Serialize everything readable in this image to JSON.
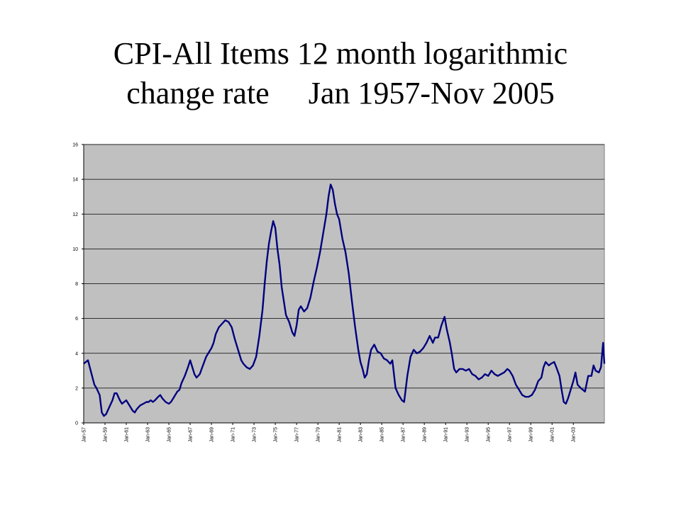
{
  "title": {
    "line1": "CPI-All Items 12 month logarithmic",
    "line2": "change rate     Jan 1957-Nov 2005"
  },
  "colors": {
    "plot_background": "#c0c0c0",
    "series_line": "#00007f",
    "gridline": "#000000"
  },
  "chart_data": {
    "type": "line",
    "title": "CPI-All Items 12 month logarithmic change rate     Jan 1957-Nov 2005",
    "xlabel": "",
    "ylabel": "",
    "ylim": [
      0,
      16
    ],
    "yticks": [
      0,
      2,
      4,
      6,
      8,
      10,
      12,
      14,
      16
    ],
    "xlim": [
      1957.0,
      2005.917
    ],
    "xtick_labels": [
      {
        "x": 1957,
        "label": "Jan-57"
      },
      {
        "x": 1959,
        "label": "Jan-59"
      },
      {
        "x": 1961,
        "label": "Jan-61"
      },
      {
        "x": 1963,
        "label": "Jan-63"
      },
      {
        "x": 1965,
        "label": "Jan-65"
      },
      {
        "x": 1967,
        "label": "Jan-67"
      },
      {
        "x": 1969,
        "label": "Jan-69"
      },
      {
        "x": 1971,
        "label": "Jan-71"
      },
      {
        "x": 1973,
        "label": "Jan-73"
      },
      {
        "x": 1975,
        "label": "Jan-75"
      },
      {
        "x": 1977,
        "label": "Jan-77"
      },
      {
        "x": 1979,
        "label": "Jan-79"
      },
      {
        "x": 1981,
        "label": "Jan-81"
      },
      {
        "x": 1983,
        "label": "Jan-83"
      },
      {
        "x": 1985,
        "label": "Jan-85"
      },
      {
        "x": 1987,
        "label": "Jan-87"
      },
      {
        "x": 1989,
        "label": "Jan-89"
      },
      {
        "x": 1991,
        "label": "Jan-91"
      },
      {
        "x": 1993,
        "label": "Jan-93"
      },
      {
        "x": 1995,
        "label": "Jan-95"
      },
      {
        "x": 1997,
        "label": "Jan-97"
      },
      {
        "x": 1999,
        "label": "Jan-99"
      },
      {
        "x": 2001,
        "label": "Jan-01"
      },
      {
        "x": 2003,
        "label": "Jan-03"
      }
    ],
    "grid": "horizontal",
    "legend": "none",
    "series": [
      {
        "points": [
          [
            1957.0,
            3.4
          ],
          [
            1957.2,
            3.5
          ],
          [
            1957.4,
            3.6
          ],
          [
            1957.7,
            2.9
          ],
          [
            1958.0,
            2.2
          ],
          [
            1958.2,
            2.0
          ],
          [
            1958.5,
            1.6
          ],
          [
            1958.7,
            0.6
          ],
          [
            1958.9,
            0.4
          ],
          [
            1959.1,
            0.5
          ],
          [
            1959.4,
            0.9
          ],
          [
            1959.7,
            1.3
          ],
          [
            1959.9,
            1.7
          ],
          [
            1960.1,
            1.7
          ],
          [
            1960.4,
            1.3
          ],
          [
            1960.6,
            1.1
          ],
          [
            1960.8,
            1.2
          ],
          [
            1961.0,
            1.3
          ],
          [
            1961.2,
            1.1
          ],
          [
            1961.4,
            0.9
          ],
          [
            1961.6,
            0.7
          ],
          [
            1961.8,
            0.6
          ],
          [
            1962.0,
            0.8
          ],
          [
            1962.3,
            1.0
          ],
          [
            1962.6,
            1.1
          ],
          [
            1962.9,
            1.2
          ],
          [
            1963.1,
            1.2
          ],
          [
            1963.3,
            1.3
          ],
          [
            1963.5,
            1.2
          ],
          [
            1963.7,
            1.3
          ],
          [
            1964.0,
            1.5
          ],
          [
            1964.2,
            1.6
          ],
          [
            1964.4,
            1.4
          ],
          [
            1964.7,
            1.2
          ],
          [
            1965.0,
            1.1
          ],
          [
            1965.2,
            1.2
          ],
          [
            1965.5,
            1.5
          ],
          [
            1965.8,
            1.8
          ],
          [
            1966.0,
            1.9
          ],
          [
            1966.2,
            2.3
          ],
          [
            1966.5,
            2.7
          ],
          [
            1966.8,
            3.2
          ],
          [
            1967.0,
            3.6
          ],
          [
            1967.2,
            3.2
          ],
          [
            1967.4,
            2.8
          ],
          [
            1967.6,
            2.6
          ],
          [
            1967.9,
            2.8
          ],
          [
            1968.2,
            3.3
          ],
          [
            1968.5,
            3.8
          ],
          [
            1968.8,
            4.1
          ],
          [
            1969.0,
            4.3
          ],
          [
            1969.2,
            4.6
          ],
          [
            1969.4,
            5.1
          ],
          [
            1969.7,
            5.5
          ],
          [
            1970.0,
            5.7
          ],
          [
            1970.3,
            5.9
          ],
          [
            1970.6,
            5.8
          ],
          [
            1970.9,
            5.5
          ],
          [
            1971.2,
            4.8
          ],
          [
            1971.5,
            4.2
          ],
          [
            1971.8,
            3.6
          ],
          [
            1972.0,
            3.4
          ],
          [
            1972.3,
            3.2
          ],
          [
            1972.6,
            3.1
          ],
          [
            1972.9,
            3.3
          ],
          [
            1973.2,
            3.8
          ],
          [
            1973.5,
            5.0
          ],
          [
            1973.8,
            6.5
          ],
          [
            1974.0,
            8.0
          ],
          [
            1974.2,
            9.3
          ],
          [
            1974.4,
            10.3
          ],
          [
            1974.6,
            11.0
          ],
          [
            1974.8,
            11.6
          ],
          [
            1975.0,
            11.2
          ],
          [
            1975.2,
            10.0
          ],
          [
            1975.4,
            9.1
          ],
          [
            1975.6,
            7.8
          ],
          [
            1975.8,
            7.0
          ],
          [
            1976.0,
            6.2
          ],
          [
            1976.3,
            5.8
          ],
          [
            1976.6,
            5.2
          ],
          [
            1976.8,
            5.0
          ],
          [
            1977.0,
            5.6
          ],
          [
            1977.2,
            6.5
          ],
          [
            1977.4,
            6.7
          ],
          [
            1977.7,
            6.4
          ],
          [
            1978.0,
            6.6
          ],
          [
            1978.3,
            7.2
          ],
          [
            1978.6,
            8.1
          ],
          [
            1978.9,
            8.9
          ],
          [
            1979.2,
            9.8
          ],
          [
            1979.5,
            10.9
          ],
          [
            1979.8,
            12.0
          ],
          [
            1980.0,
            13.0
          ],
          [
            1980.2,
            13.7
          ],
          [
            1980.4,
            13.4
          ],
          [
            1980.6,
            12.6
          ],
          [
            1980.8,
            12.0
          ],
          [
            1981.0,
            11.7
          ],
          [
            1981.3,
            10.6
          ],
          [
            1981.6,
            9.8
          ],
          [
            1981.9,
            8.6
          ],
          [
            1982.2,
            7.0
          ],
          [
            1982.5,
            5.5
          ],
          [
            1982.8,
            4.2
          ],
          [
            1983.0,
            3.5
          ],
          [
            1983.2,
            3.1
          ],
          [
            1983.4,
            2.6
          ],
          [
            1983.6,
            2.8
          ],
          [
            1983.8,
            3.6
          ],
          [
            1984.0,
            4.2
          ],
          [
            1984.3,
            4.5
          ],
          [
            1984.6,
            4.1
          ],
          [
            1984.9,
            4.0
          ],
          [
            1985.2,
            3.7
          ],
          [
            1985.5,
            3.6
          ],
          [
            1985.8,
            3.4
          ],
          [
            1986.0,
            3.6
          ],
          [
            1986.3,
            2.0
          ],
          [
            1986.6,
            1.6
          ],
          [
            1986.9,
            1.3
          ],
          [
            1987.1,
            1.2
          ],
          [
            1987.4,
            2.7
          ],
          [
            1987.7,
            3.8
          ],
          [
            1988.0,
            4.2
          ],
          [
            1988.3,
            4.0
          ],
          [
            1988.6,
            4.1
          ],
          [
            1988.9,
            4.3
          ],
          [
            1989.2,
            4.6
          ],
          [
            1989.5,
            5.0
          ],
          [
            1989.8,
            4.6
          ],
          [
            1990.0,
            4.9
          ],
          [
            1990.3,
            4.9
          ],
          [
            1990.6,
            5.6
          ],
          [
            1990.9,
            6.1
          ],
          [
            1991.1,
            5.4
          ],
          [
            1991.4,
            4.6
          ],
          [
            1991.6,
            3.9
          ],
          [
            1991.8,
            3.1
          ],
          [
            1992.0,
            2.9
          ],
          [
            1992.3,
            3.1
          ],
          [
            1992.6,
            3.1
          ],
          [
            1992.9,
            3.0
          ],
          [
            1993.2,
            3.1
          ],
          [
            1993.5,
            2.8
          ],
          [
            1993.8,
            2.7
          ],
          [
            1994.1,
            2.5
          ],
          [
            1994.4,
            2.6
          ],
          [
            1994.7,
            2.8
          ],
          [
            1995.0,
            2.7
          ],
          [
            1995.3,
            3.0
          ],
          [
            1995.6,
            2.8
          ],
          [
            1995.9,
            2.7
          ],
          [
            1996.2,
            2.8
          ],
          [
            1996.5,
            2.9
          ],
          [
            1996.8,
            3.1
          ],
          [
            1997.0,
            3.0
          ],
          [
            1997.3,
            2.7
          ],
          [
            1997.6,
            2.2
          ],
          [
            1997.9,
            1.9
          ],
          [
            1998.2,
            1.6
          ],
          [
            1998.5,
            1.5
          ],
          [
            1998.8,
            1.5
          ],
          [
            1999.1,
            1.6
          ],
          [
            1999.4,
            1.9
          ],
          [
            1999.7,
            2.4
          ],
          [
            2000.0,
            2.6
          ],
          [
            2000.2,
            3.2
          ],
          [
            2000.4,
            3.5
          ],
          [
            2000.7,
            3.3
          ],
          [
            2000.9,
            3.4
          ],
          [
            2001.2,
            3.5
          ],
          [
            2001.4,
            3.2
          ],
          [
            2001.7,
            2.7
          ],
          [
            2001.9,
            1.9
          ],
          [
            2002.1,
            1.2
          ],
          [
            2002.3,
            1.1
          ],
          [
            2002.5,
            1.4
          ],
          [
            2002.8,
            2.0
          ],
          [
            2003.0,
            2.4
          ],
          [
            2003.2,
            2.9
          ],
          [
            2003.4,
            2.2
          ],
          [
            2003.7,
            2.0
          ],
          [
            2003.9,
            1.9
          ],
          [
            2004.1,
            1.8
          ],
          [
            2004.4,
            2.7
          ],
          [
            2004.7,
            2.7
          ],
          [
            2004.9,
            3.3
          ],
          [
            2005.1,
            3.0
          ],
          [
            2005.4,
            2.9
          ],
          [
            2005.6,
            3.2
          ],
          [
            2005.8,
            4.6
          ],
          [
            2005.917,
            3.4
          ]
        ]
      }
    ]
  }
}
